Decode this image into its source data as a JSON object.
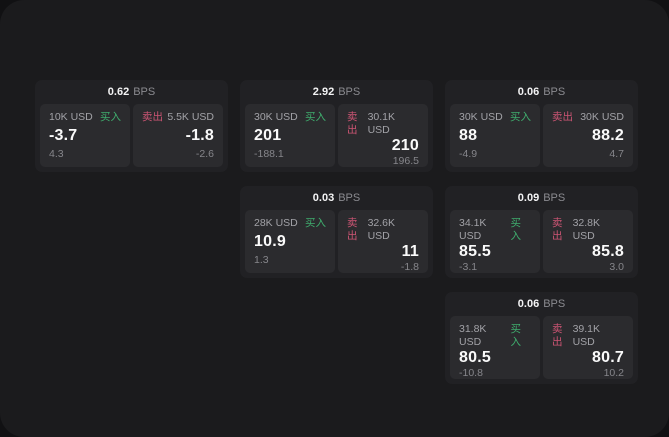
{
  "labels": {
    "bps_unit": "BPS",
    "buy": "买入",
    "sell": "卖出"
  },
  "colors": {
    "page_bg": "#1b1b1d",
    "card_bg": "#212124",
    "panel_bg": "#2b2b2e",
    "buy_green": "#3fae6e",
    "sell_red": "#cd5574",
    "value_white": "#fafafa",
    "muted_gray": "#86868b"
  },
  "cards": [
    {
      "bps": "0.62",
      "buy": {
        "size": "10K USD",
        "price": "-3.7",
        "delta": "4.3"
      },
      "sell": {
        "size": "5.5K USD",
        "price": "-1.8",
        "delta": "-2.6"
      }
    },
    {
      "bps": "2.92",
      "buy": {
        "size": "30K USD",
        "price": "201",
        "delta": "-188.1"
      },
      "sell": {
        "size": "30.1K USD",
        "price": "210",
        "delta": "196.5"
      }
    },
    {
      "bps": "0.06",
      "buy": {
        "size": "30K USD",
        "price": "88",
        "delta": "-4.9"
      },
      "sell": {
        "size": "30K USD",
        "price": "88.2",
        "delta": "4.7"
      }
    },
    {
      "bps": "0.03",
      "buy": {
        "size": "28K USD",
        "price": "10.9",
        "delta": "1.3"
      },
      "sell": {
        "size": "32.6K USD",
        "price": "11",
        "delta": "-1.8"
      }
    },
    {
      "bps": "0.09",
      "buy": {
        "size": "34.1K USD",
        "price": "85.5",
        "delta": "-3.1"
      },
      "sell": {
        "size": "32.8K USD",
        "price": "85.8",
        "delta": "3.0"
      }
    },
    {
      "bps": "0.06",
      "buy": {
        "size": "31.8K USD",
        "price": "80.5",
        "delta": "-10.8"
      },
      "sell": {
        "size": "39.1K USD",
        "price": "80.7",
        "delta": "10.2"
      }
    }
  ]
}
